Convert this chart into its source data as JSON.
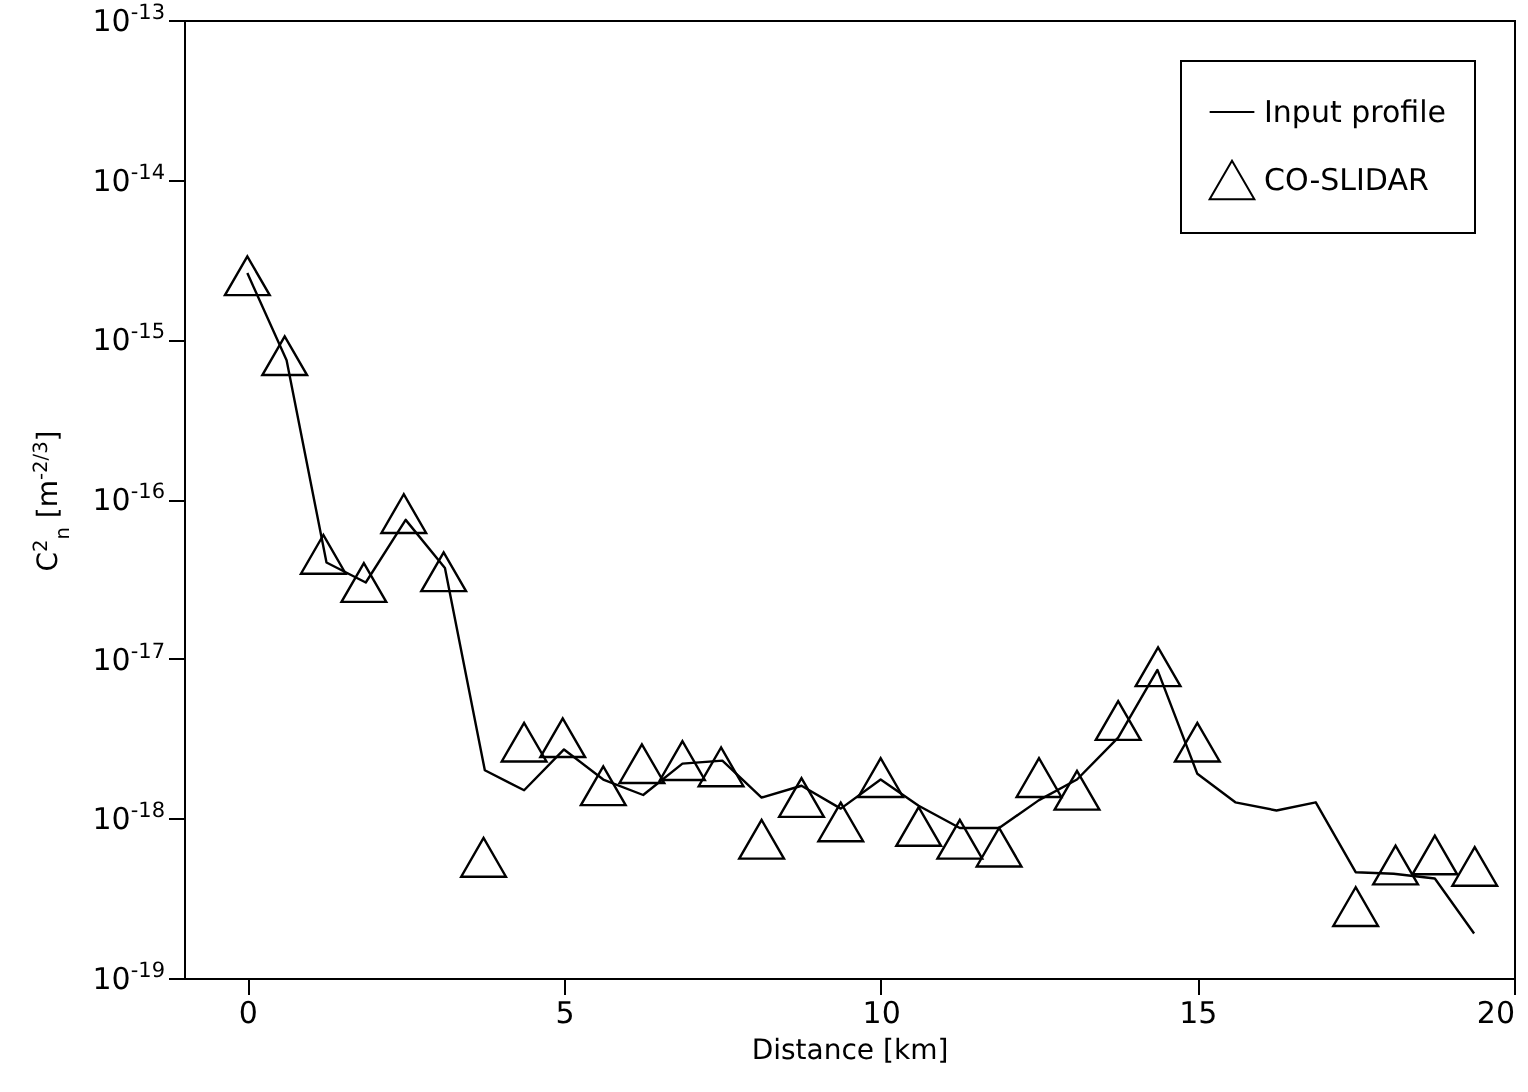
{
  "chart_data": {
    "type": "line",
    "xlabel": "Distance [km]",
    "ylabel": "C$^{2}$$_{n}$  [m$^{-2/3}$]",
    "log": "y",
    "legend": "top right",
    "grid": false,
    "xlim": [
      -1,
      20
    ],
    "xticks": [
      0,
      5,
      10,
      15,
      20
    ],
    "ylim": [
      1e-19,
      1e-13
    ],
    "yticks": [
      {
        "value": 1e-19,
        "label": "10$^{-19}$"
      },
      {
        "value": 1e-18,
        "label": "10$^{-18}$"
      },
      {
        "value": 1e-17,
        "label": "10$^{-17}$"
      },
      {
        "value": 1e-16,
        "label": "10$^{-16}$"
      },
      {
        "value": 1e-15,
        "label": "10$^{-15}$"
      },
      {
        "value": 1e-14,
        "label": "10$^{-14}$"
      },
      {
        "value": 1e-13,
        "label": "10$^{-13}$"
      }
    ],
    "series": [
      {
        "name": "Input profile",
        "type": "line",
        "marker": "none",
        "line_style": "solid",
        "color": "#000000",
        "x": [
          0,
          0.62,
          1.25,
          1.87,
          2.5,
          3.12,
          3.75,
          4.37,
          5,
          5.62,
          6.25,
          6.87,
          7.5,
          8.12,
          8.75,
          9.37,
          10,
          10.6,
          11.25,
          11.87,
          12.5,
          13.1,
          13.75,
          14.37,
          15,
          15.6,
          16.25,
          16.87,
          17.5,
          18.1,
          18.75,
          19.37
        ],
        "values": [
          2.6e-15,
          7.4e-16,
          4e-17,
          3e-17,
          7.4e-17,
          3.7e-17,
          2e-18,
          1.5e-18,
          2.7e-18,
          1.75e-18,
          1.4e-18,
          2.2e-18,
          2.3e-18,
          1.35e-18,
          1.6e-18,
          1.15e-18,
          1.75e-18,
          1.2e-18,
          8.7e-19,
          8.7e-19,
          1.3e-18,
          1.75e-18,
          3.2e-18,
          8.5e-18,
          1.9e-18,
          1.26e-18,
          1.12e-18,
          1.26e-18,
          4.6e-19,
          4.5e-19,
          4.2e-19,
          1.9e-19
        ]
      },
      {
        "name": "CO-SLIDAR",
        "type": "scatter",
        "marker": "triangle",
        "color": "#000000",
        "x": [
          0,
          0.59,
          1.2,
          1.84,
          2.47,
          3.1,
          3.73,
          4.37,
          4.98,
          5.62,
          6.23,
          6.87,
          7.48,
          8.12,
          8.75,
          9.37,
          10,
          10.6,
          11.25,
          11.87,
          12.5,
          13.1,
          13.75,
          14.38,
          15,
          17.5,
          18.13,
          18.75,
          19.38
        ],
        "values": [
          2.5e-15,
          7.9e-16,
          4.5e-17,
          3e-17,
          8.1e-17,
          3.5e-17,
          5.7e-19,
          3e-18,
          3.2e-18,
          1.6e-18,
          2.2e-18,
          2.3e-18,
          2.1e-18,
          7.4e-19,
          1.35e-18,
          9.5e-19,
          1.8e-18,
          8.9e-19,
          7.4e-19,
          6.6e-19,
          1.8e-18,
          1.5e-18,
          4.1e-18,
          8.9e-18,
          3e-18,
          2.8e-19,
          5.1e-19,
          5.9e-19,
          5e-19
        ]
      }
    ]
  }
}
